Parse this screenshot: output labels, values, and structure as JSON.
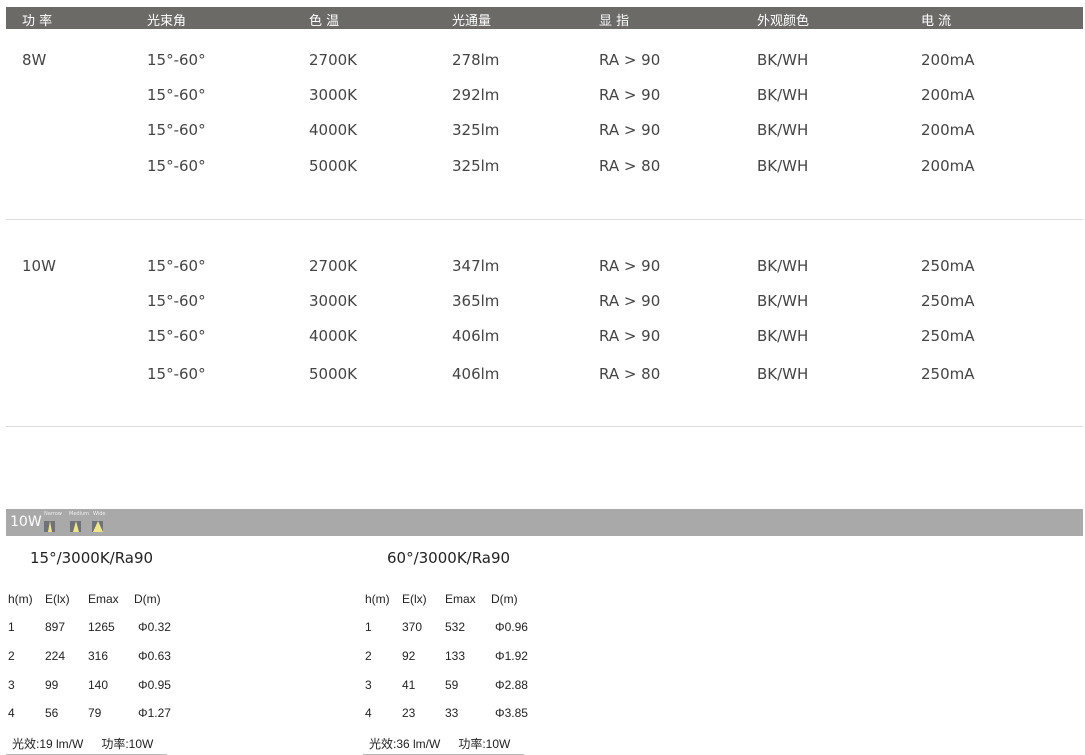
{
  "headers": [
    "功 率",
    "光束角",
    "色 温",
    "光通量",
    "显 指",
    "外观颜色",
    "电 流"
  ],
  "groups": [
    {
      "power": "8W",
      "rows": [
        [
          "15°-60°",
          "2700K",
          "278lm",
          "RA > 90",
          "BK/WH",
          "200mA"
        ],
        [
          "15°-60°",
          "3000K",
          "292lm",
          "RA > 90",
          "BK/WH",
          "200mA"
        ],
        [
          "15°-60°",
          "4000K",
          "325lm",
          "RA > 90",
          "BK/WH",
          "200mA"
        ],
        [
          "15°-60°",
          "5000K",
          "325lm",
          "RA > 80",
          "BK/WH",
          "200mA"
        ]
      ]
    },
    {
      "power": "10W",
      "rows": [
        [
          "15°-60°",
          "2700K",
          "347lm",
          "RA > 90",
          "BK/WH",
          "250mA"
        ],
        [
          "15°-60°",
          "3000K",
          "365lm",
          "RA > 90",
          "BK/WH",
          "250mA"
        ],
        [
          "15°-60°",
          "4000K",
          "406lm",
          "RA > 90",
          "BK/WH",
          "250mA"
        ],
        [
          "15°-60°",
          "5000K",
          "406lm",
          "RA > 80",
          "BK/WH",
          "250mA"
        ]
      ]
    }
  ],
  "photometry": {
    "bar_label": "10W",
    "beam_labels": [
      "Narrow",
      "Medium",
      "Wide"
    ],
    "tables": [
      {
        "title": "15°/3000K/Ra90",
        "columns": [
          "h(m)",
          "E(lx)",
          "Emax",
          "D(m)"
        ],
        "rows": [
          [
            "1",
            "897",
            "1265",
            "Φ0.32"
          ],
          [
            "2",
            "224",
            "316",
            "Φ0.63"
          ],
          [
            "3",
            "99",
            "140",
            "Φ0.95"
          ],
          [
            "4",
            "56",
            "79",
            "Φ1.27"
          ]
        ],
        "efficacy": "光效:19 lm/W",
        "power": "功率:10W"
      },
      {
        "title": "60°/3000K/Ra90",
        "columns": [
          "h(m)",
          "E(lx)",
          "Emax",
          "D(m)"
        ],
        "rows": [
          [
            "1",
            "370",
            "532",
            "Φ0.96"
          ],
          [
            "2",
            "92",
            "133",
            "Φ1.92"
          ],
          [
            "3",
            "41",
            "59",
            "Φ2.88"
          ],
          [
            "4",
            "23",
            "33",
            "Φ3.85"
          ]
        ],
        "efficacy": "光效:36 lm/W",
        "power": "功率:10W"
      }
    ]
  },
  "colors": {
    "header_bg": "#6b6a66",
    "bar_bg": "#a9a9a9",
    "beam": "#f1e58a"
  }
}
